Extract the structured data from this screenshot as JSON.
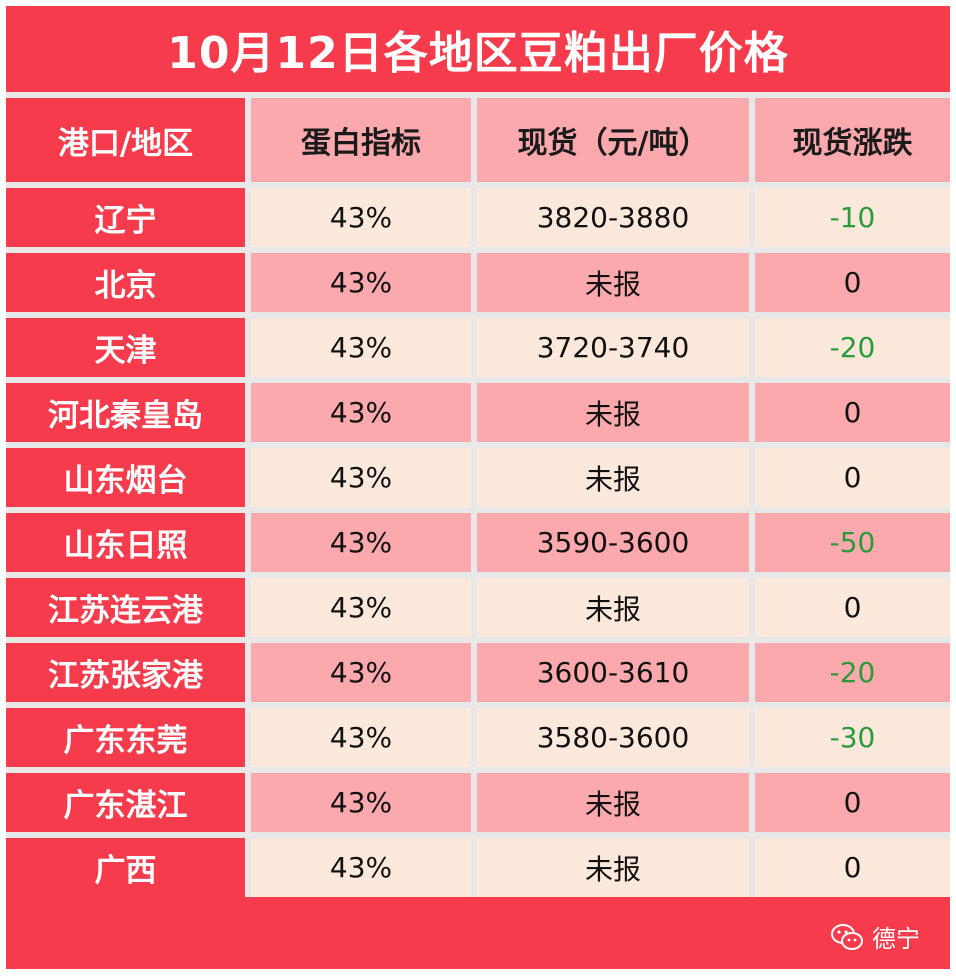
{
  "title": "10月12日各地区豆粕出厂价格",
  "headers": [
    "港口/地区",
    "蛋白指标",
    "现货（元/吨）",
    "现货涨跌"
  ],
  "rows": [
    {
      "region": "辽宁",
      "protein": "43%",
      "price": "3820-3880",
      "change": "-10"
    },
    {
      "region": "北京",
      "protein": "43%",
      "price": "未报",
      "change": "0"
    },
    {
      "region": "天津",
      "protein": "43%",
      "price": "3720-3740",
      "change": "-20"
    },
    {
      "region": "河北秦皇岛",
      "protein": "43%",
      "price": "未报",
      "change": "0"
    },
    {
      "region": "山东烟台",
      "protein": "43%",
      "price": "未报",
      "change": "0"
    },
    {
      "region": "山东日照",
      "protein": "43%",
      "price": "3590-3600",
      "change": "-50"
    },
    {
      "region": "江苏连云港",
      "protein": "43%",
      "price": "未报",
      "change": "0"
    },
    {
      "region": "江苏张家港",
      "protein": "43%",
      "price": "3600-3610",
      "change": "-20"
    },
    {
      "region": "广东东莞",
      "protein": "43%",
      "price": "3580-3600",
      "change": "-30"
    },
    {
      "region": "广东湛江",
      "protein": "43%",
      "price": "未报",
      "change": "0"
    },
    {
      "region": "广西",
      "protein": "43%",
      "price": "未报",
      "change": "0"
    }
  ],
  "watermark": {
    "icon": "wechat-icon",
    "text": "德宁"
  },
  "colors": {
    "header_red": "#f63c4c",
    "pink": "#fba9ad",
    "cream": "#fde9dc",
    "negative_green": "#2a9a3a"
  }
}
